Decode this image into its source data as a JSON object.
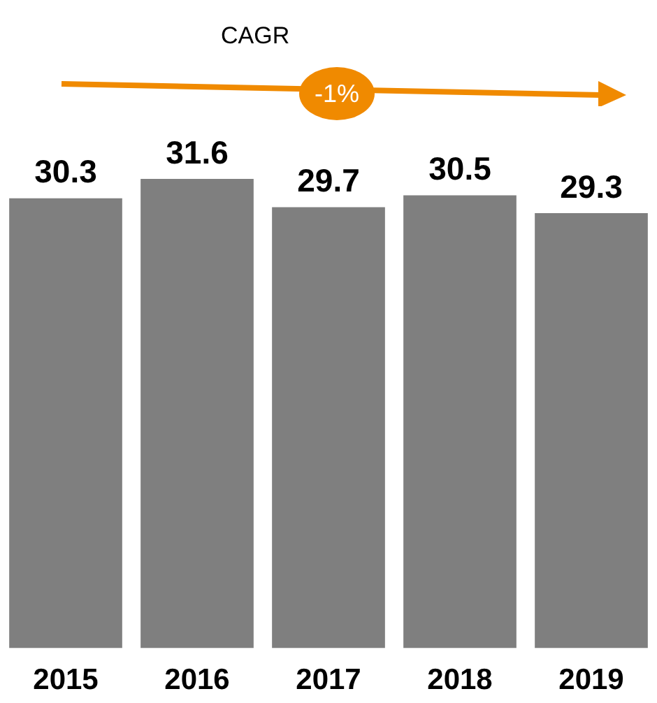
{
  "chart_data": {
    "type": "bar",
    "categories": [
      "2015",
      "2016",
      "2017",
      "2018",
      "2019"
    ],
    "values": [
      30.3,
      31.6,
      29.7,
      30.5,
      29.3
    ],
    "color": "#7f7f7f",
    "data_labels": true,
    "annotations": [
      "CAGR",
      "-1%"
    ],
    "grid": false,
    "legend": false
  }
}
